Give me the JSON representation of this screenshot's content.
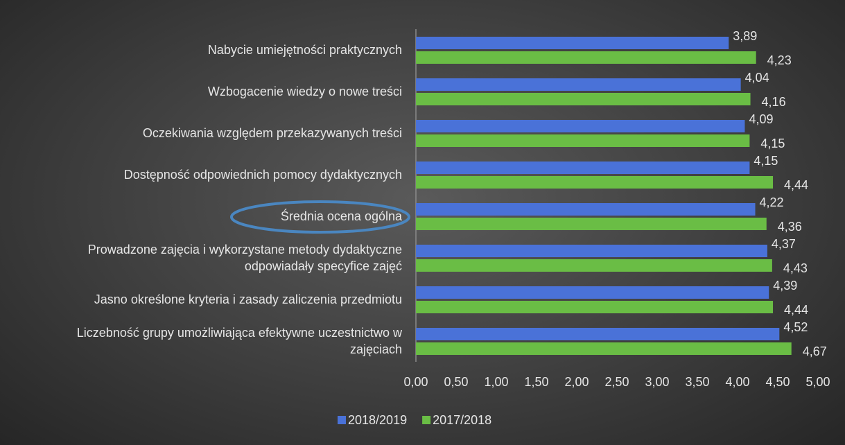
{
  "chart_data": {
    "type": "bar",
    "orientation": "horizontal",
    "categories": [
      "Nabycie umiejętności praktycznych",
      "Wzbogacenie wiedzy o nowe treści",
      "Oczekiwania względem przekazywanych treści",
      "Dostępność odpowiednich pomocy dydaktycznych",
      "Średnia ocena ogólna",
      "Prowadzone zajęcia i wykorzystane metody dydaktyczne odpowiadały specyfice zajęć",
      "Jasno określone kryteria i zasady zaliczenia przedmiotu",
      "Liczebność grupy umożliwiająca efektywne uczestnictwo w zajęciach"
    ],
    "series": [
      {
        "name": "2018/2019",
        "color": "#4a72d8",
        "values": [
          3.89,
          4.04,
          4.09,
          4.15,
          4.22,
          4.37,
          4.39,
          4.52
        ],
        "value_labels": [
          "3,89",
          "4,04",
          "4,09",
          "4,15",
          "4,22",
          "4,37",
          "4,39",
          "4,52"
        ]
      },
      {
        "name": "2017/2018",
        "color": "#6abd45",
        "values": [
          4.23,
          4.16,
          4.15,
          4.44,
          4.36,
          4.43,
          4.44,
          4.67
        ],
        "value_labels": [
          "4,23",
          "4,16",
          "4,15",
          "4,44",
          "4,36",
          "4,43",
          "4,44",
          "4,67"
        ]
      }
    ],
    "xlim": [
      0,
      5
    ],
    "xticks": [
      {
        "value": 0,
        "label": "0,00"
      },
      {
        "value": 0.5,
        "label": "0,50"
      },
      {
        "value": 1,
        "label": "1,00"
      },
      {
        "value": 1.5,
        "label": "1,50"
      },
      {
        "value": 2,
        "label": "2,00"
      },
      {
        "value": 2.5,
        "label": "2,50"
      },
      {
        "value": 3,
        "label": "3,00"
      },
      {
        "value": 3.5,
        "label": "3,50"
      },
      {
        "value": 4,
        "label": "4,00"
      },
      {
        "value": 4.5,
        "label": "4,50"
      },
      {
        "value": 5,
        "label": "5,00"
      }
    ],
    "grid": false,
    "legend": "bottom"
  }
}
